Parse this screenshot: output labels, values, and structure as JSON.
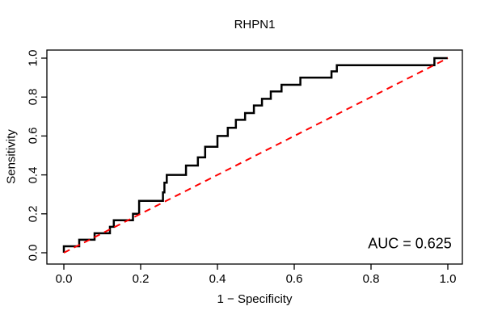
{
  "title": "RHPN1",
  "annotation": {
    "auc_label": "AUC = 0.625"
  },
  "colors": {
    "curve": "#000000",
    "reference_line": "#fe0000",
    "axis": "#000000",
    "text": "#000000",
    "background": "#ffffff"
  },
  "chart_data": {
    "type": "line",
    "subtype": "roc-step-curve",
    "title": "RHPN1",
    "xlabel": "1 − Specificity",
    "ylabel": "Sensitivity",
    "xlim": [
      0,
      1
    ],
    "ylim": [
      0,
      1
    ],
    "grid": false,
    "legend_position": "none",
    "x_tick_values": [
      0.0,
      0.2,
      0.4,
      0.6,
      0.8,
      1.0
    ],
    "x_tick_labels": [
      "0.0",
      "0.2",
      "0.4",
      "0.6",
      "0.8",
      "1.0"
    ],
    "y_tick_values": [
      0.0,
      0.2,
      0.4,
      0.6,
      0.8,
      1.0
    ],
    "y_tick_labels": [
      "0.0",
      "0.2",
      "0.4",
      "0.6",
      "0.8",
      "1.0"
    ],
    "auc": 0.625,
    "series": [
      {
        "name": "ROC curve",
        "style": "solid",
        "color": "#000000",
        "line_width": 2.5,
        "points": [
          [
            0,
            0
          ],
          [
            0,
            0.033
          ],
          [
            0.04,
            0.033
          ],
          [
            0.04,
            0.067
          ],
          [
            0.08,
            0.067
          ],
          [
            0.08,
            0.1
          ],
          [
            0.12,
            0.1
          ],
          [
            0.12,
            0.133
          ],
          [
            0.13,
            0.133
          ],
          [
            0.13,
            0.167
          ],
          [
            0.18,
            0.167
          ],
          [
            0.18,
            0.2
          ],
          [
            0.196,
            0.2
          ],
          [
            0.196,
            0.267
          ],
          [
            0.258,
            0.267
          ],
          [
            0.258,
            0.31
          ],
          [
            0.262,
            0.31
          ],
          [
            0.262,
            0.36
          ],
          [
            0.268,
            0.36
          ],
          [
            0.268,
            0.4
          ],
          [
            0.318,
            0.4
          ],
          [
            0.318,
            0.448
          ],
          [
            0.349,
            0.448
          ],
          [
            0.349,
            0.49
          ],
          [
            0.368,
            0.49
          ],
          [
            0.368,
            0.545
          ],
          [
            0.4,
            0.545
          ],
          [
            0.4,
            0.6
          ],
          [
            0.427,
            0.6
          ],
          [
            0.427,
            0.642
          ],
          [
            0.448,
            0.642
          ],
          [
            0.448,
            0.683
          ],
          [
            0.472,
            0.683
          ],
          [
            0.472,
            0.718
          ],
          [
            0.495,
            0.718
          ],
          [
            0.495,
            0.757
          ],
          [
            0.516,
            0.757
          ],
          [
            0.516,
            0.791
          ],
          [
            0.539,
            0.791
          ],
          [
            0.539,
            0.829
          ],
          [
            0.567,
            0.829
          ],
          [
            0.567,
            0.863
          ],
          [
            0.616,
            0.863
          ],
          [
            0.616,
            0.9
          ],
          [
            0.697,
            0.9
          ],
          [
            0.697,
            0.932
          ],
          [
            0.711,
            0.932
          ],
          [
            0.711,
            0.964
          ],
          [
            0.965,
            0.964
          ],
          [
            0.965,
            1
          ],
          [
            1,
            1
          ]
        ]
      },
      {
        "name": "chance reference",
        "style": "dashed",
        "color": "#fe0000",
        "line_width": 2,
        "points": [
          [
            0,
            0
          ],
          [
            1,
            1
          ]
        ]
      }
    ]
  }
}
